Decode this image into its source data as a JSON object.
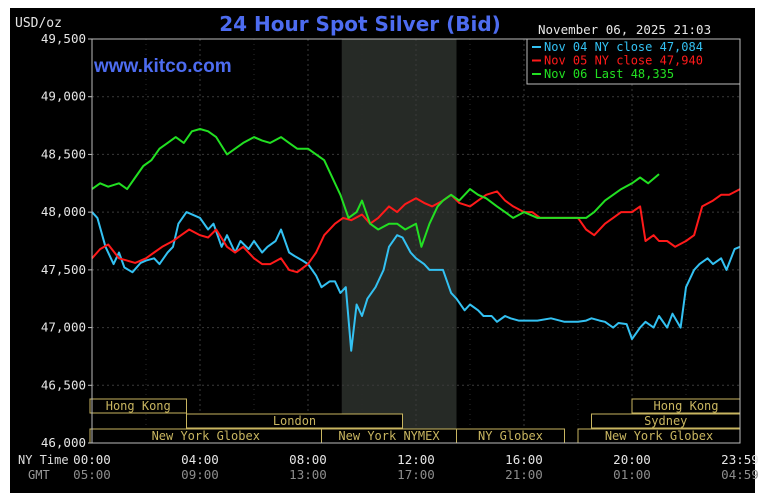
{
  "chart_data": {
    "type": "line",
    "title": "24 Hour Spot Silver (Bid)",
    "ylabel": "USD/oz",
    "brand": "www.kitco.com",
    "timestamp": "November 06, 2025 21:03",
    "ylim": [
      46000,
      49500
    ],
    "yticks": [
      46000,
      46500,
      47000,
      47500,
      48000,
      48500,
      49000,
      49500
    ],
    "ytick_labels": [
      "46,000",
      "46,500",
      "47,000",
      "47,500",
      "48,000",
      "48,500",
      "49,000",
      "49,500"
    ],
    "xlim": [
      0,
      24
    ],
    "xticks": [
      0,
      4,
      8,
      12,
      16,
      20,
      24
    ],
    "row_labels": {
      "ny": "NY Time",
      "gmt": "GMT"
    },
    "xtick_labels_ny": [
      "00:00",
      "04:00",
      "08:00",
      "12:00",
      "16:00",
      "20:00",
      "23:59"
    ],
    "xtick_labels_gmt": [
      "05:00",
      "09:00",
      "13:00",
      "17:00",
      "21:00",
      "01:00",
      "04:59"
    ],
    "shaded_range": [
      9.25,
      13.5
    ],
    "legend_placement": "top-right",
    "grid": true,
    "colors": {
      "nov04": "#33c1f2",
      "nov05": "#ff1a1a",
      "nov06": "#22e022",
      "session_box": "#c8b560",
      "background": "#000000"
    },
    "sessions": [
      {
        "name": "Hong Kong",
        "row": 0,
        "start": -1,
        "end": 3.5
      },
      {
        "name": "Hong Kong",
        "row": 0,
        "start": 20,
        "end": 24
      },
      {
        "name": "London",
        "row": 1,
        "start": 3.5,
        "end": 11.5
      },
      {
        "name": "Sydney",
        "row": 1,
        "start": 18.5,
        "end": 24
      },
      {
        "name": "New York Globex",
        "row": 2,
        "start": -1,
        "end": 8.5
      },
      {
        "name": "New York NYMEX",
        "row": 2,
        "start": 8.5,
        "end": 13.5
      },
      {
        "name": "NY Globex",
        "row": 2,
        "start": 13.5,
        "end": 17.5
      },
      {
        "name": "New York Globex",
        "row": 2,
        "start": 18,
        "end": 24
      }
    ],
    "series": [
      {
        "name": "Nov 04 NY close 47,084",
        "color": "#33c1f2",
        "x": [
          0,
          0.2,
          0.5,
          0.8,
          1.0,
          1.2,
          1.5,
          1.8,
          2.0,
          2.3,
          2.5,
          2.8,
          3.0,
          3.2,
          3.5,
          3.8,
          4.0,
          4.3,
          4.5,
          4.8,
          5.0,
          5.3,
          5.5,
          5.8,
          6.0,
          6.3,
          6.5,
          6.8,
          7.0,
          7.3,
          7.5,
          7.8,
          8.0,
          8.3,
          8.5,
          8.8,
          9.0,
          9.2,
          9.4,
          9.6,
          9.8,
          10.0,
          10.2,
          10.5,
          10.8,
          11.0,
          11.3,
          11.5,
          11.8,
          12.0,
          12.3,
          12.5,
          12.8,
          13.0,
          13.3,
          13.5,
          13.8,
          14.0,
          14.3,
          14.5,
          14.8,
          15.0,
          15.3,
          15.5,
          15.8,
          16.0,
          16.5,
          17.0,
          17.5,
          18.0,
          18.3,
          18.5,
          18.8,
          19.0,
          19.3,
          19.5,
          19.8,
          20.0,
          20.3,
          20.5,
          20.8,
          21.0,
          21.3,
          21.5,
          21.8,
          22.0,
          22.3,
          22.5,
          22.8,
          23.0,
          23.3,
          23.5,
          23.8,
          24.0
        ],
        "y": [
          48000,
          47950,
          47700,
          47550,
          47650,
          47520,
          47480,
          47560,
          47580,
          47600,
          47550,
          47650,
          47700,
          47900,
          48000,
          47970,
          47950,
          47850,
          47900,
          47700,
          47800,
          47650,
          47750,
          47680,
          47750,
          47650,
          47700,
          47750,
          47850,
          47650,
          47620,
          47580,
          47550,
          47450,
          47350,
          47400,
          47400,
          47300,
          47350,
          46800,
          47200,
          47100,
          47250,
          47350,
          47500,
          47700,
          47800,
          47780,
          47650,
          47600,
          47550,
          47500,
          47500,
          47500,
          47300,
          47250,
          47150,
          47200,
          47150,
          47100,
          47100,
          47050,
          47100,
          47080,
          47060,
          47060,
          47060,
          47080,
          47050,
          47050,
          47060,
          47080,
          47060,
          47050,
          47000,
          47040,
          47030,
          46900,
          47000,
          47050,
          47000,
          47100,
          47000,
          47120,
          47000,
          47350,
          47500,
          47550,
          47600,
          47550,
          47600,
          47500,
          47680,
          47700
        ]
      },
      {
        "name": "Nov 05 NY close 47,940",
        "color": "#ff1a1a",
        "x": [
          0,
          0.3,
          0.6,
          1.0,
          1.3,
          1.6,
          2.0,
          2.3,
          2.6,
          3.0,
          3.3,
          3.6,
          4.0,
          4.3,
          4.6,
          5.0,
          5.3,
          5.6,
          6.0,
          6.3,
          6.6,
          7.0,
          7.3,
          7.6,
          8.0,
          8.3,
          8.6,
          9.0,
          9.3,
          9.6,
          10.0,
          10.3,
          10.6,
          11.0,
          11.3,
          11.6,
          12.0,
          12.3,
          12.6,
          13.0,
          13.3,
          13.6,
          14.0,
          14.3,
          14.6,
          15.0,
          15.3,
          15.6,
          16.0,
          16.3,
          16.6,
          17.0,
          17.5,
          18.0,
          18.3,
          18.6,
          19.0,
          19.3,
          19.6,
          20.0,
          20.3,
          20.5,
          20.8,
          21.0,
          21.3,
          21.6,
          22.0,
          22.3,
          22.6,
          23.0,
          23.3,
          23.6,
          24.0
        ],
        "y": [
          47600,
          47680,
          47720,
          47600,
          47580,
          47560,
          47600,
          47650,
          47700,
          47750,
          47800,
          47850,
          47800,
          47780,
          47850,
          47700,
          47650,
          47700,
          47600,
          47550,
          47550,
          47600,
          47500,
          47480,
          47550,
          47650,
          47800,
          47900,
          47950,
          47930,
          47980,
          47900,
          47950,
          48050,
          48000,
          48070,
          48120,
          48080,
          48050,
          48100,
          48150,
          48080,
          48050,
          48100,
          48150,
          48180,
          48100,
          48050,
          48000,
          48000,
          47950,
          47950,
          47950,
          47950,
          47850,
          47800,
          47900,
          47950,
          48000,
          48000,
          48050,
          47750,
          47800,
          47750,
          47750,
          47700,
          47750,
          47800,
          48050,
          48100,
          48150,
          48150,
          48200
        ]
      },
      {
        "name": "Nov 06 Last 48,335",
        "color": "#22e022",
        "x": [
          0,
          0.3,
          0.6,
          1.0,
          1.3,
          1.6,
          1.9,
          2.2,
          2.5,
          2.8,
          3.1,
          3.4,
          3.7,
          4.0,
          4.3,
          4.6,
          5.0,
          5.3,
          5.6,
          6.0,
          6.3,
          6.6,
          7.0,
          7.3,
          7.6,
          8.0,
          8.3,
          8.6,
          9.0,
          9.2,
          9.5,
          9.8,
          10.0,
          10.3,
          10.6,
          11.0,
          11.3,
          11.6,
          12.0,
          12.2,
          12.5,
          12.8,
          13.0,
          13.3,
          13.6,
          14.0,
          14.3,
          14.6,
          15.0,
          15.3,
          15.6,
          16.0,
          16.5,
          17.0,
          17.5,
          18.0,
          18.3,
          18.6,
          19.0,
          19.3,
          19.6,
          20.0,
          20.3,
          20.6,
          21.0
        ],
        "y": [
          48200,
          48250,
          48220,
          48250,
          48200,
          48300,
          48400,
          48450,
          48550,
          48600,
          48650,
          48600,
          48700,
          48720,
          48700,
          48650,
          48500,
          48550,
          48600,
          48650,
          48620,
          48600,
          48650,
          48600,
          48550,
          48550,
          48500,
          48450,
          48250,
          48150,
          47950,
          48000,
          48100,
          47900,
          47850,
          47900,
          47900,
          47850,
          47900,
          47700,
          47900,
          48050,
          48100,
          48150,
          48100,
          48200,
          48150,
          48120,
          48050,
          48000,
          47950,
          48000,
          47950,
          47950,
          47950,
          47950,
          47950,
          48000,
          48100,
          48150,
          48200,
          48250,
          48300,
          48250,
          48330
        ]
      }
    ]
  }
}
